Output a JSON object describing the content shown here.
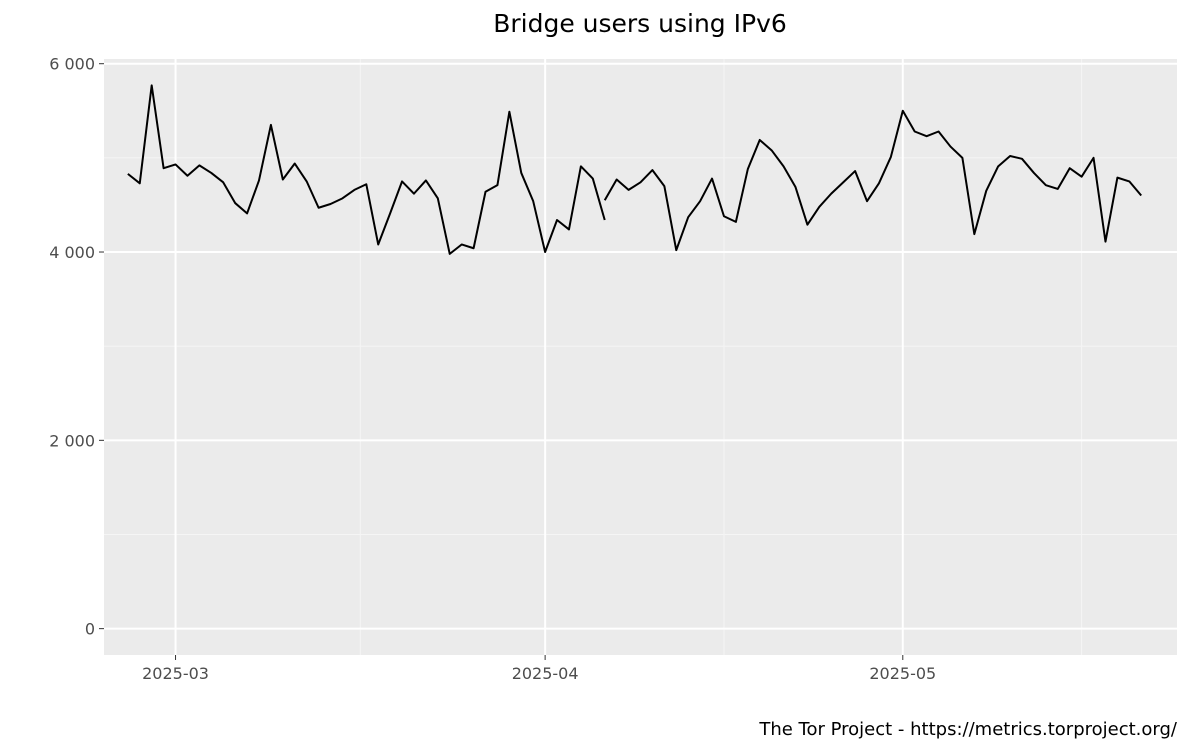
{
  "chart_data": {
    "type": "line",
    "title": "Bridge users using IPv6",
    "caption": "The Tor Project - https://metrics.torproject.org/",
    "xlabel": "",
    "ylabel": "",
    "ylim": [
      -280,
      6050
    ],
    "xlim": [
      "2025-02-23",
      "2025-05-24"
    ],
    "grid": true,
    "legend": "none",
    "y_ticks": [
      {
        "value": 0,
        "label": "0"
      },
      {
        "value": 2000,
        "label": "2 000"
      },
      {
        "value": 4000,
        "label": "4 000"
      },
      {
        "value": 6000,
        "label": "6 000"
      }
    ],
    "x_ticks": [
      {
        "date": "2025-03-01",
        "label": "2025-03"
      },
      {
        "date": "2025-04-01",
        "label": "2025-04"
      },
      {
        "date": "2025-05-01",
        "label": "2025-05"
      }
    ],
    "series": [
      {
        "segments": [
          {
            "start": "2025-02-25",
            "values": [
              4830,
              4730,
              5770,
              4890,
              4930,
              4810,
              4920,
              4840,
              4740,
              4520,
              4410,
              4760,
              5350,
              4770,
              4940,
              4750,
              4470,
              4510,
              4570,
              4660,
              4720,
              4080,
              4410,
              4750,
              4620,
              4760,
              4570,
              3980,
              4080,
              4040,
              4640,
              4710,
              5490,
              4840,
              4540,
              4000,
              4340,
              4240,
              4910,
              4780,
              4340
            ]
          },
          {
            "start": "2025-04-06",
            "values": [
              4550,
              4770,
              4660,
              4740,
              4870,
              4700,
              4020,
              4370,
              4540,
              4780,
              4380,
              4320,
              4880,
              5190,
              5080,
              4910,
              4690,
              4290,
              4480,
              4620,
              4740,
              4860,
              4540,
              4730,
              5010,
              5500,
              5280,
              5230,
              5280,
              5120,
              5000,
              4190,
              4650,
              4910,
              5020,
              4990,
              4840,
              4710,
              4670,
              4890,
              4800,
              5000,
              4110,
              4790,
              4750,
              4600
            ]
          }
        ]
      }
    ],
    "style": {
      "panel_bg": "#ebebeb",
      "major_grid": "#ffffff",
      "minor_grid": "#f5f5f5",
      "line_color": "#000000",
      "tick_color": "#333333"
    }
  }
}
